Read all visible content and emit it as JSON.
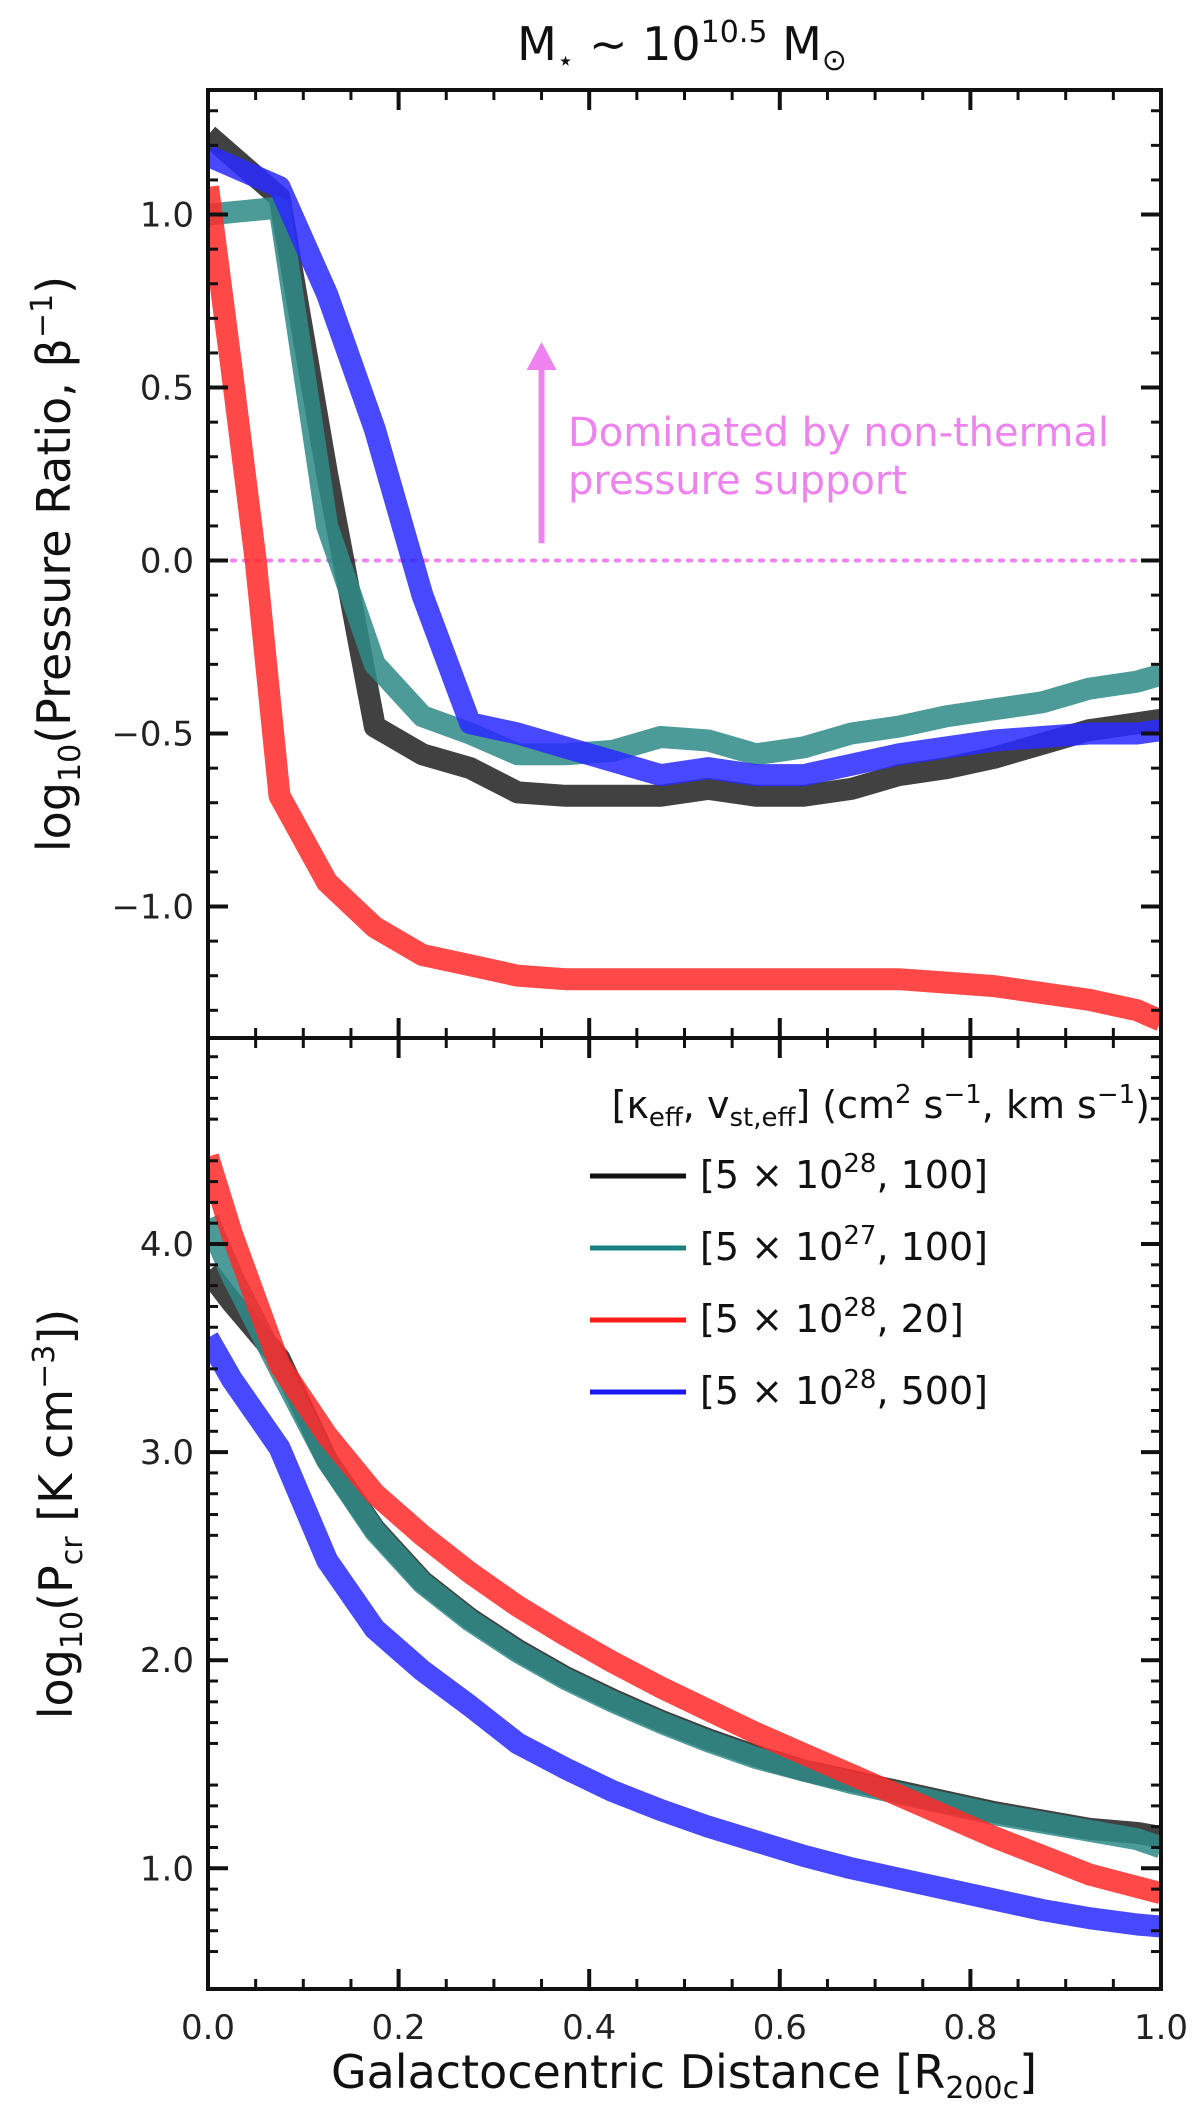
{
  "chart_data": [
    {
      "type": "line",
      "panel": "top",
      "title": "M⋆ ∼ 10^10.5 M⊙",
      "title_parts": {
        "base": "M",
        "sub_star": "⋆",
        "sim": " ∼ 10",
        "exp": "10.5",
        "tail": " M",
        "sun": "⊙"
      },
      "ylabel": "log10(Pressure Ratio, β^−1)",
      "ylabel_parts": {
        "pre": "log",
        "sub": "10",
        "mid": "(Pressure Ratio, β",
        "sup": "−1",
        "post": ")"
      },
      "xlim": [
        0.0,
        1.0
      ],
      "ylim": [
        -1.38,
        1.36
      ],
      "yticks": [
        1.0,
        0.5,
        0.0,
        -0.5,
        -1.0
      ],
      "ytick_labels": [
        "1.0",
        "0.5",
        "0.0",
        "−0.5",
        "−1.0"
      ],
      "reference_line": {
        "y": 0.0,
        "style": "dotted",
        "color": "#ee82ee"
      },
      "annotation": {
        "lines": [
          "Dominated by non-thermal",
          "pressure support"
        ],
        "color": "#ee82ee",
        "arrow_from": [
          0.35,
          0.05
        ],
        "arrow_to": [
          0.35,
          0.62
        ]
      },
      "series": [
        {
          "name": "[5 × 10^28, 100]",
          "color": "#222222",
          "x": [
            0.0,
            0.075,
            0.125,
            0.175,
            0.225,
            0.275,
            0.325,
            0.375,
            0.425,
            0.475,
            0.525,
            0.575,
            0.625,
            0.675,
            0.725,
            0.775,
            0.825,
            0.875,
            0.925,
            0.975,
            1.0
          ],
          "values": [
            1.23,
            1.05,
            0.25,
            -0.48,
            -0.56,
            -0.6,
            -0.67,
            -0.68,
            -0.68,
            -0.68,
            -0.66,
            -0.68,
            -0.68,
            -0.66,
            -0.62,
            -0.6,
            -0.57,
            -0.53,
            -0.49,
            -0.47,
            -0.46
          ]
        },
        {
          "name": "[5 × 10^27, 100]",
          "color": "#2e8b87",
          "x": [
            0.0,
            0.075,
            0.125,
            0.175,
            0.225,
            0.275,
            0.325,
            0.375,
            0.425,
            0.475,
            0.525,
            0.575,
            0.625,
            0.675,
            0.725,
            0.775,
            0.825,
            0.875,
            0.925,
            0.975,
            1.0
          ],
          "values": [
            1.0,
            1.02,
            0.1,
            -0.3,
            -0.45,
            -0.5,
            -0.56,
            -0.56,
            -0.55,
            -0.51,
            -0.52,
            -0.56,
            -0.54,
            -0.5,
            -0.48,
            -0.45,
            -0.43,
            -0.41,
            -0.37,
            -0.35,
            -0.33
          ]
        },
        {
          "name": "[5 × 10^28, 20]",
          "color": "#ff2a2a",
          "x": [
            0.0,
            0.025,
            0.05,
            0.075,
            0.125,
            0.175,
            0.225,
            0.275,
            0.325,
            0.375,
            0.425,
            0.475,
            0.525,
            0.575,
            0.625,
            0.675,
            0.725,
            0.775,
            0.825,
            0.875,
            0.925,
            0.975,
            1.0
          ],
          "values": [
            1.08,
            0.55,
            0.0,
            -0.68,
            -0.93,
            -1.06,
            -1.14,
            -1.17,
            -1.2,
            -1.21,
            -1.21,
            -1.21,
            -1.21,
            -1.21,
            -1.21,
            -1.21,
            -1.21,
            -1.22,
            -1.23,
            -1.25,
            -1.27,
            -1.3,
            -1.33
          ]
        },
        {
          "name": "[5 × 10^28, 500]",
          "color": "#2a2aff",
          "x": [
            0.0,
            0.075,
            0.125,
            0.175,
            0.225,
            0.275,
            0.325,
            0.375,
            0.425,
            0.475,
            0.525,
            0.575,
            0.625,
            0.675,
            0.725,
            0.775,
            0.825,
            0.875,
            0.925,
            0.975,
            1.0
          ],
          "values": [
            1.17,
            1.08,
            0.77,
            0.38,
            -0.1,
            -0.47,
            -0.5,
            -0.54,
            -0.58,
            -0.62,
            -0.6,
            -0.62,
            -0.62,
            -0.59,
            -0.56,
            -0.54,
            -0.52,
            -0.51,
            -0.5,
            -0.5,
            -0.49
          ]
        }
      ]
    },
    {
      "type": "line",
      "panel": "bottom",
      "xlabel": "Galactocentric Distance [R200c]",
      "xlabel_parts": {
        "pre": "Galactocentric Distance [R",
        "sub": "200c",
        "post": "]"
      },
      "ylabel": "log10(Pcr [K cm^−3])",
      "ylabel_parts": {
        "pre": "log",
        "sub": "10",
        "mid": "(P",
        "sub2": "cr",
        "mid2": " [K cm",
        "sup": "−3",
        "post": "])"
      },
      "xlim": [
        0.0,
        1.0
      ],
      "ylim": [
        0.42,
        4.99
      ],
      "xticks": [
        0.0,
        0.2,
        0.4,
        0.6,
        0.8,
        1.0
      ],
      "xtick_labels": [
        "0.0",
        "0.2",
        "0.4",
        "0.6",
        "0.8",
        "1.0"
      ],
      "yticks": [
        1.0,
        2.0,
        3.0,
        4.0
      ],
      "ytick_labels": [
        "1.0",
        "2.0",
        "3.0",
        "4.0"
      ],
      "legend": {
        "title": "[κeff, vst,eff] (cm2 s−1, km s−1)",
        "title_parts": {
          "open": "[κ",
          "sub1": "eff",
          "mid": ", v",
          "sub2": "st,eff",
          "mid2": "] (cm",
          "sup1": "2",
          "mid3": " s",
          "sup2": "−1",
          "mid4": ", km s",
          "sup3": "−1",
          "close": ")"
        },
        "position": "top-right",
        "entries": [
          {
            "pre": "[5 × 10",
            "exp": "28",
            "post": ", 100]",
            "color": "#111111"
          },
          {
            "pre": "[5 × 10",
            "exp": "27",
            "post": ", 100]",
            "color": "#1a8080"
          },
          {
            "pre": "[5 × 10",
            "exp": "28",
            "post": ", 20]",
            "color": "#ff1a1a"
          },
          {
            "pre": "[5 × 10",
            "exp": "28",
            "post": ", 500]",
            "color": "#1a1aee"
          }
        ]
      },
      "series": [
        {
          "name": "[5 × 10^28, 100]",
          "color": "#222222",
          "x": [
            0.0,
            0.025,
            0.075,
            0.125,
            0.175,
            0.225,
            0.275,
            0.325,
            0.375,
            0.425,
            0.475,
            0.525,
            0.575,
            0.625,
            0.675,
            0.725,
            0.775,
            0.825,
            0.875,
            0.925,
            0.975,
            1.0
          ],
          "values": [
            3.87,
            3.72,
            3.45,
            2.96,
            2.63,
            2.38,
            2.2,
            2.05,
            1.92,
            1.81,
            1.71,
            1.62,
            1.54,
            1.47,
            1.42,
            1.37,
            1.32,
            1.27,
            1.23,
            1.19,
            1.17,
            1.15
          ]
        },
        {
          "name": "[5 × 10^27, 100]",
          "color": "#2e8b87",
          "x": [
            0.0,
            0.025,
            0.075,
            0.125,
            0.175,
            0.225,
            0.275,
            0.325,
            0.375,
            0.425,
            0.475,
            0.525,
            0.575,
            0.625,
            0.675,
            0.725,
            0.775,
            0.825,
            0.875,
            0.925,
            0.975,
            1.0
          ],
          "values": [
            4.12,
            3.85,
            3.4,
            2.96,
            2.62,
            2.37,
            2.19,
            2.04,
            1.91,
            1.8,
            1.7,
            1.61,
            1.53,
            1.47,
            1.41,
            1.36,
            1.31,
            1.26,
            1.22,
            1.18,
            1.14,
            1.1
          ]
        },
        {
          "name": "[5 × 10^28, 20]",
          "color": "#ff2a2a",
          "x": [
            0.0,
            0.025,
            0.075,
            0.125,
            0.175,
            0.225,
            0.275,
            0.325,
            0.375,
            0.425,
            0.475,
            0.525,
            0.575,
            0.625,
            0.675,
            0.725,
            0.775,
            0.825,
            0.875,
            0.925,
            0.975,
            1.0
          ],
          "values": [
            4.42,
            4.05,
            3.42,
            3.08,
            2.8,
            2.6,
            2.42,
            2.26,
            2.12,
            1.99,
            1.87,
            1.76,
            1.65,
            1.55,
            1.45,
            1.35,
            1.25,
            1.15,
            1.06,
            0.97,
            0.91,
            0.88
          ]
        },
        {
          "name": "[5 × 10^28, 500]",
          "color": "#2a2aff",
          "x": [
            0.0,
            0.025,
            0.075,
            0.125,
            0.175,
            0.225,
            0.275,
            0.325,
            0.375,
            0.425,
            0.475,
            0.525,
            0.575,
            0.625,
            0.675,
            0.725,
            0.775,
            0.825,
            0.875,
            0.925,
            0.975,
            1.0
          ],
          "values": [
            3.55,
            3.35,
            3.02,
            2.48,
            2.15,
            1.95,
            1.78,
            1.6,
            1.48,
            1.37,
            1.28,
            1.2,
            1.13,
            1.06,
            1.0,
            0.95,
            0.9,
            0.85,
            0.8,
            0.76,
            0.73,
            0.72
          ]
        }
      ]
    }
  ]
}
